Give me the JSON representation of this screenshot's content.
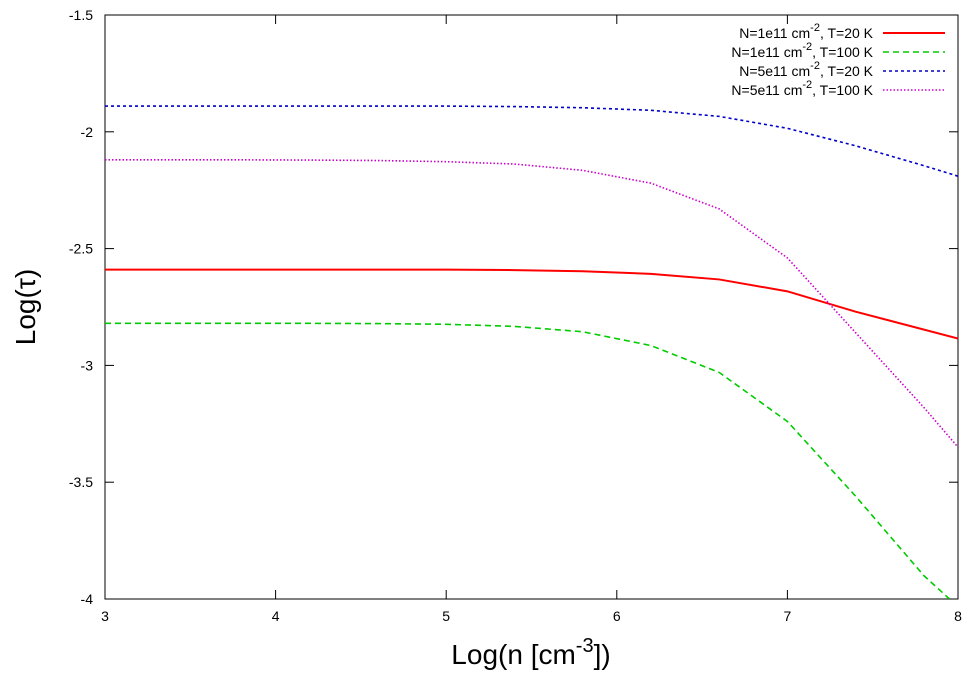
{
  "chart_data": {
    "type": "line",
    "title": "",
    "xlabel": "Log(n [cm-3])",
    "ylabel": "Log(τ)",
    "xlim": [
      3,
      8
    ],
    "ylim": [
      -4,
      -1.5
    ],
    "xticks": [
      "3",
      "4",
      "5",
      "6",
      "7",
      "8"
    ],
    "yticks": [
      "-4",
      "-3.5",
      "-3",
      "-2.5",
      "-2",
      "-1.5"
    ],
    "legend_position": "top-right",
    "grid": false,
    "series": [
      {
        "name": "N=1e11 cm-2, T=20 K",
        "color": "#ff0000",
        "dash": "solid",
        "points": [
          [
            3.0,
            -2.59
          ],
          [
            3.4,
            -2.59
          ],
          [
            3.8,
            -2.59
          ],
          [
            4.2,
            -2.59
          ],
          [
            4.6,
            -2.59
          ],
          [
            5.0,
            -2.59
          ],
          [
            5.4,
            -2.592
          ],
          [
            5.8,
            -2.597
          ],
          [
            6.2,
            -2.608
          ],
          [
            6.6,
            -2.632
          ],
          [
            7.0,
            -2.683
          ],
          [
            7.4,
            -2.77
          ],
          [
            8.0,
            -2.885
          ]
        ]
      },
      {
        "name": "N=1e11 cm-2, T=100 K",
        "color": "#00cc00",
        "dash": "dashed",
        "points": [
          [
            3.0,
            -2.82
          ],
          [
            3.4,
            -2.82
          ],
          [
            3.8,
            -2.82
          ],
          [
            4.2,
            -2.82
          ],
          [
            4.6,
            -2.821
          ],
          [
            5.0,
            -2.824
          ],
          [
            5.4,
            -2.833
          ],
          [
            5.8,
            -2.856
          ],
          [
            6.2,
            -2.915
          ],
          [
            6.6,
            -3.03
          ],
          [
            7.0,
            -3.24
          ],
          [
            7.4,
            -3.56
          ],
          [
            7.8,
            -3.9
          ],
          [
            7.95,
            -4.0
          ]
        ]
      },
      {
        "name": "N=5e11 cm-2, T=20 K",
        "color": "#0000cc",
        "dash": "dotted",
        "points": [
          [
            3.0,
            -1.89
          ],
          [
            3.4,
            -1.89
          ],
          [
            3.8,
            -1.89
          ],
          [
            4.2,
            -1.89
          ],
          [
            4.6,
            -1.89
          ],
          [
            5.0,
            -1.89
          ],
          [
            5.4,
            -1.892
          ],
          [
            5.8,
            -1.897
          ],
          [
            6.2,
            -1.908
          ],
          [
            6.6,
            -1.934
          ],
          [
            7.0,
            -1.985
          ],
          [
            7.4,
            -2.06
          ],
          [
            7.8,
            -2.145
          ],
          [
            8.0,
            -2.19
          ]
        ]
      },
      {
        "name": "N=5e11 cm-2, T=100 K",
        "color": "#cc00cc",
        "dash": "dotted-fine",
        "points": [
          [
            3.0,
            -2.12
          ],
          [
            3.4,
            -2.12
          ],
          [
            3.8,
            -2.12
          ],
          [
            4.2,
            -2.121
          ],
          [
            4.6,
            -2.123
          ],
          [
            5.0,
            -2.128
          ],
          [
            5.4,
            -2.138
          ],
          [
            5.8,
            -2.165
          ],
          [
            6.2,
            -2.22
          ],
          [
            6.6,
            -2.33
          ],
          [
            7.0,
            -2.54
          ],
          [
            7.4,
            -2.86
          ],
          [
            7.8,
            -3.18
          ],
          [
            8.0,
            -3.35
          ]
        ]
      }
    ]
  }
}
